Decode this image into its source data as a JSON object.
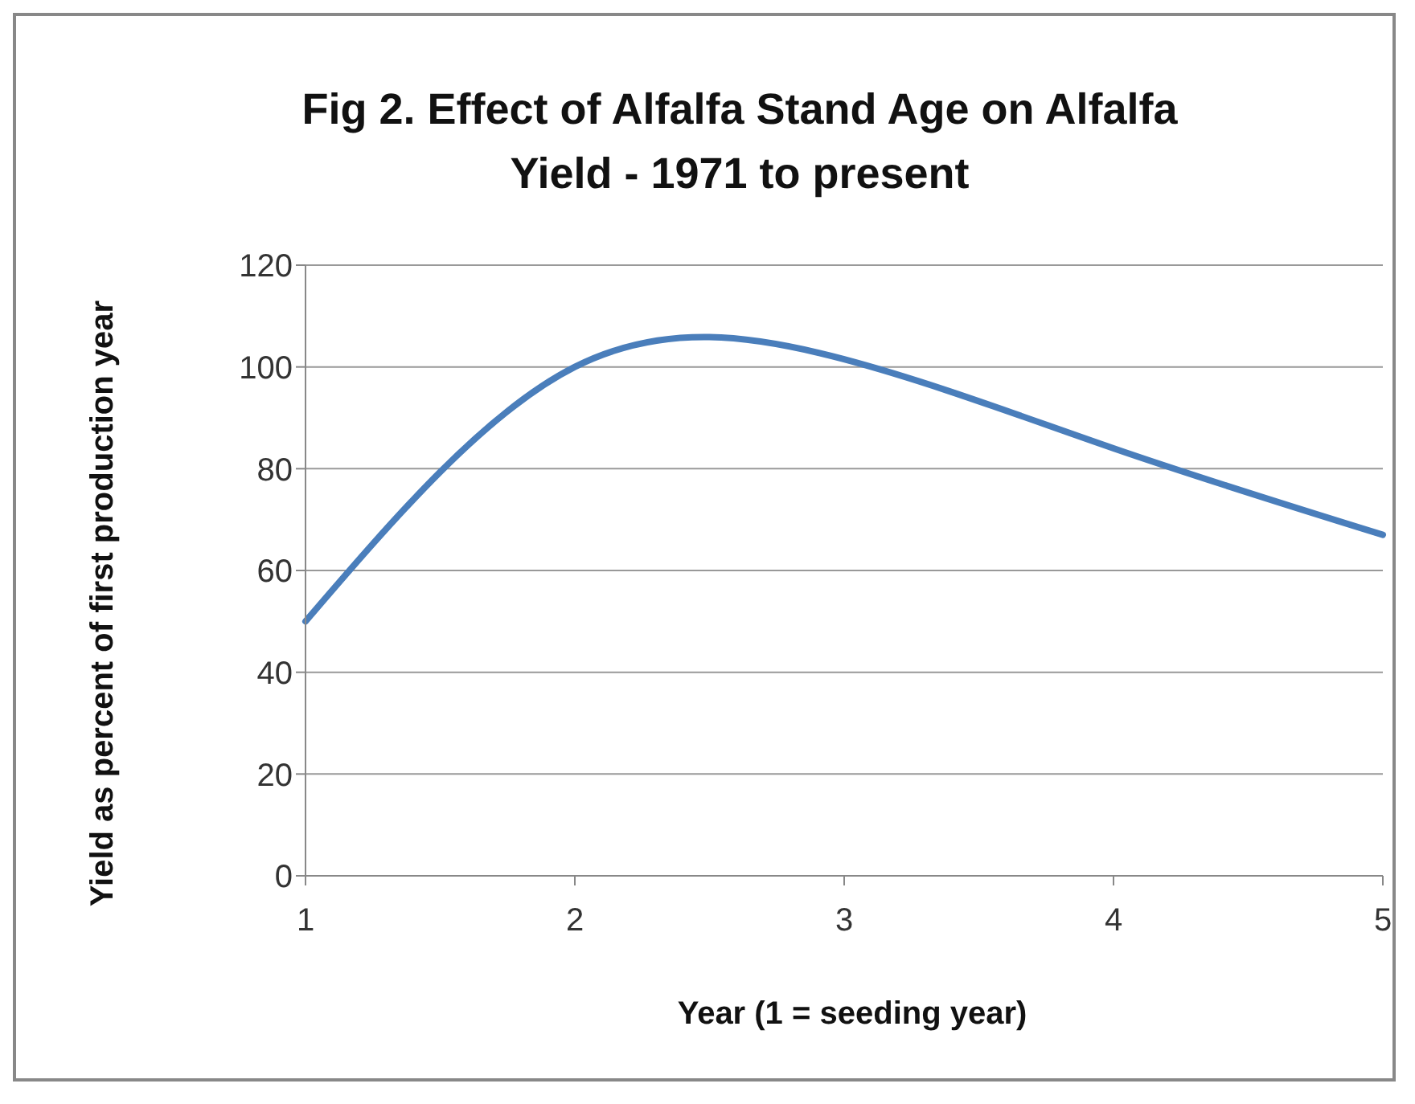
{
  "chart_data": {
    "type": "line",
    "title": "Fig 2. Effect of  Alfalfa Stand Age on Alfalfa Yield -  1971 to present",
    "xlabel": "Year (1 = seeding year)",
    "ylabel": "Yield as percent of first production year",
    "categories": [
      "1",
      "2",
      "3",
      "4",
      "5"
    ],
    "series": [
      {
        "color": "#4a7ebb",
        "values": [
          50,
          100,
          101.5,
          84,
          67
        ]
      }
    ],
    "ylim": [
      0,
      120
    ],
    "yticks": [
      0,
      20,
      40,
      60,
      80,
      100,
      120
    ],
    "grid": "y",
    "legend": false,
    "marker": "none",
    "line_style": "solid"
  }
}
